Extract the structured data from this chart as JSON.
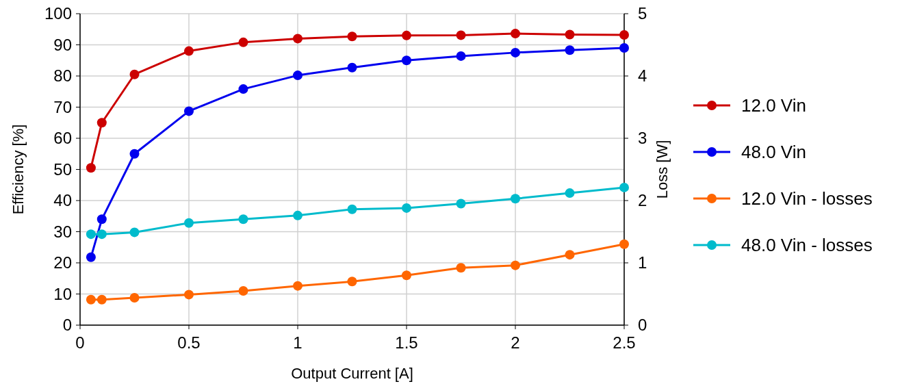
{
  "chart_data": {
    "type": "line",
    "xlabel": "Output Current [A]",
    "ylabel": "Efficiency [%]",
    "y2label": "Loss [W]",
    "x": [
      0.05,
      0.1,
      0.25,
      0.5,
      0.75,
      1,
      1.25,
      1.5,
      1.75,
      2,
      2.25,
      2.5
    ],
    "series": [
      {
        "name": "12.0 Vin",
        "color": "#cc0000",
        "values": [
          50.5,
          65,
          80.5,
          88,
          90.8,
          92,
          92.7,
          93,
          93.1,
          93.6,
          93.3,
          93.2
        ]
      },
      {
        "name": "48.0 Vin",
        "color": "#0000ee",
        "values": [
          21.8,
          34,
          55,
          68.7,
          75.8,
          80.2,
          82.7,
          85,
          86.4,
          87.5,
          88.3,
          89
        ]
      },
      {
        "name": "12.0 Vin - losses",
        "color": "#ff6600",
        "axis": "y2",
        "values": [
          0.41,
          0.41,
          0.44,
          0.49,
          0.55,
          0.63,
          0.7,
          0.8,
          0.92,
          0.96,
          1.13,
          1.3
        ]
      },
      {
        "name": "48.0 Vin - losses",
        "color": "#00bbcc",
        "axis": "y2",
        "values": [
          1.46,
          1.46,
          1.49,
          1.64,
          1.7,
          1.76,
          1.86,
          1.88,
          1.95,
          2.03,
          2.12,
          2.21
        ]
      }
    ],
    "xlim": [
      0,
      2.5
    ],
    "xticks": [
      0,
      0.5,
      1,
      1.5,
      2,
      2.5
    ],
    "ylim": [
      0,
      100
    ],
    "yticks": [
      0,
      10,
      20,
      30,
      40,
      50,
      60,
      70,
      80,
      90,
      100
    ],
    "y2lim": [
      0,
      5
    ],
    "y2ticks": [
      0,
      1,
      2,
      3,
      4,
      5
    ],
    "grid": true,
    "legend": "right",
    "marker": "circle",
    "line_style": "solid"
  }
}
